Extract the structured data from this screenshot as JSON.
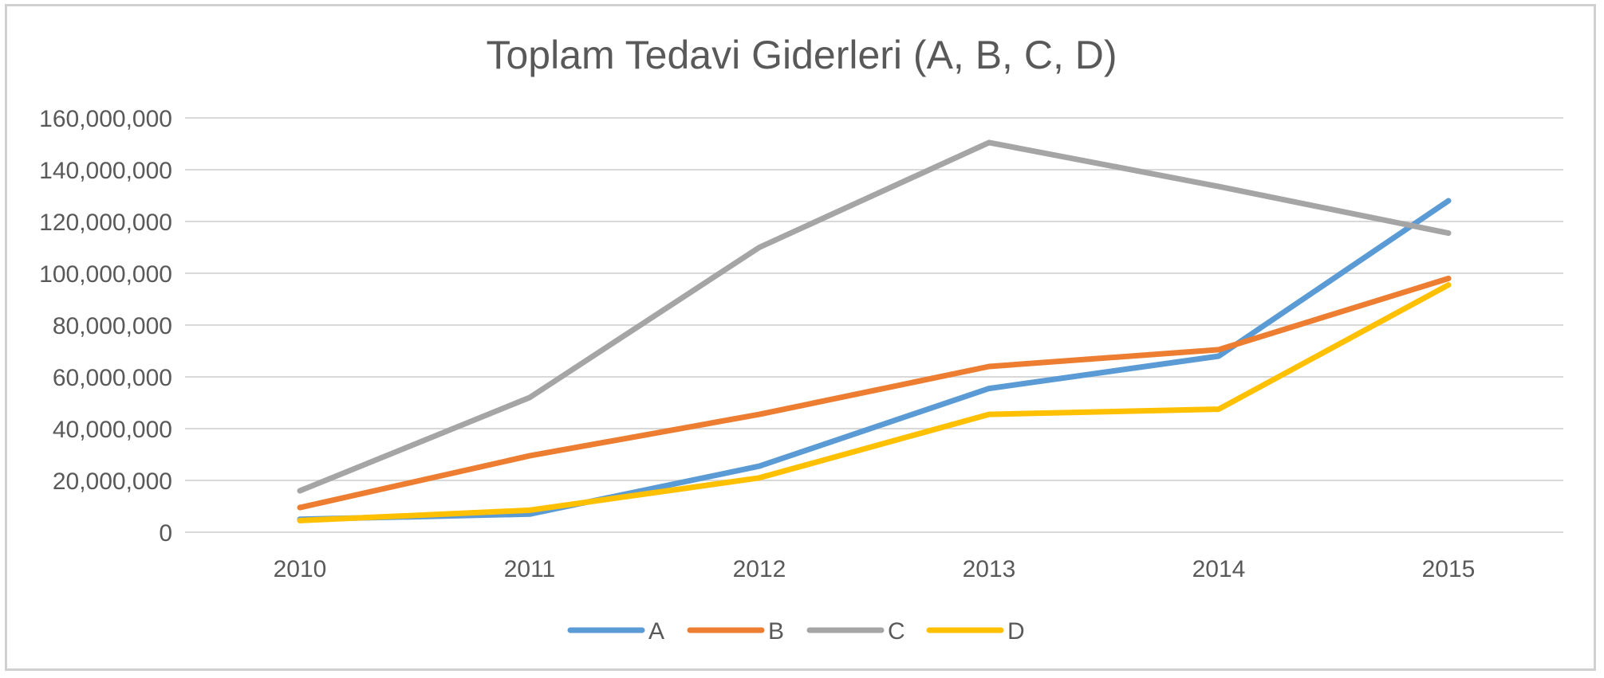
{
  "chart_data": {
    "type": "line",
    "title": "Toplam Tedavi Giderleri (A, B, C, D)",
    "categories": [
      "2010",
      "2011",
      "2012",
      "2013",
      "2014",
      "2015"
    ],
    "ylim": [
      0,
      160000000
    ],
    "y_ticks": [
      {
        "value": 0,
        "label": "0"
      },
      {
        "value": 20000000,
        "label": "20,000,000"
      },
      {
        "value": 40000000,
        "label": "40,000,000"
      },
      {
        "value": 60000000,
        "label": "60,000,000"
      },
      {
        "value": 80000000,
        "label": "80,000,000"
      },
      {
        "value": 100000000,
        "label": "100,000,000"
      },
      {
        "value": 120000000,
        "label": "120,000,000"
      },
      {
        "value": 140000000,
        "label": "140,000,000"
      },
      {
        "value": 160000000,
        "label": "160,000,000"
      }
    ],
    "grid": true,
    "legend_position": "bottom",
    "series": [
      {
        "name": "A",
        "color": "#5b9bd5",
        "values": [
          5000000,
          7000000,
          25500000,
          55500000,
          68000000,
          128000000
        ]
      },
      {
        "name": "B",
        "color": "#ed7d31",
        "values": [
          9500000,
          29500000,
          45500000,
          64000000,
          70500000,
          98000000
        ]
      },
      {
        "name": "C",
        "color": "#a5a5a5",
        "values": [
          16000000,
          52000000,
          110000000,
          150500000,
          133500000,
          115500000
        ]
      },
      {
        "name": "D",
        "color": "#ffc000",
        "values": [
          4500000,
          8500000,
          21000000,
          45500000,
          47500000,
          95500000
        ]
      }
    ]
  }
}
